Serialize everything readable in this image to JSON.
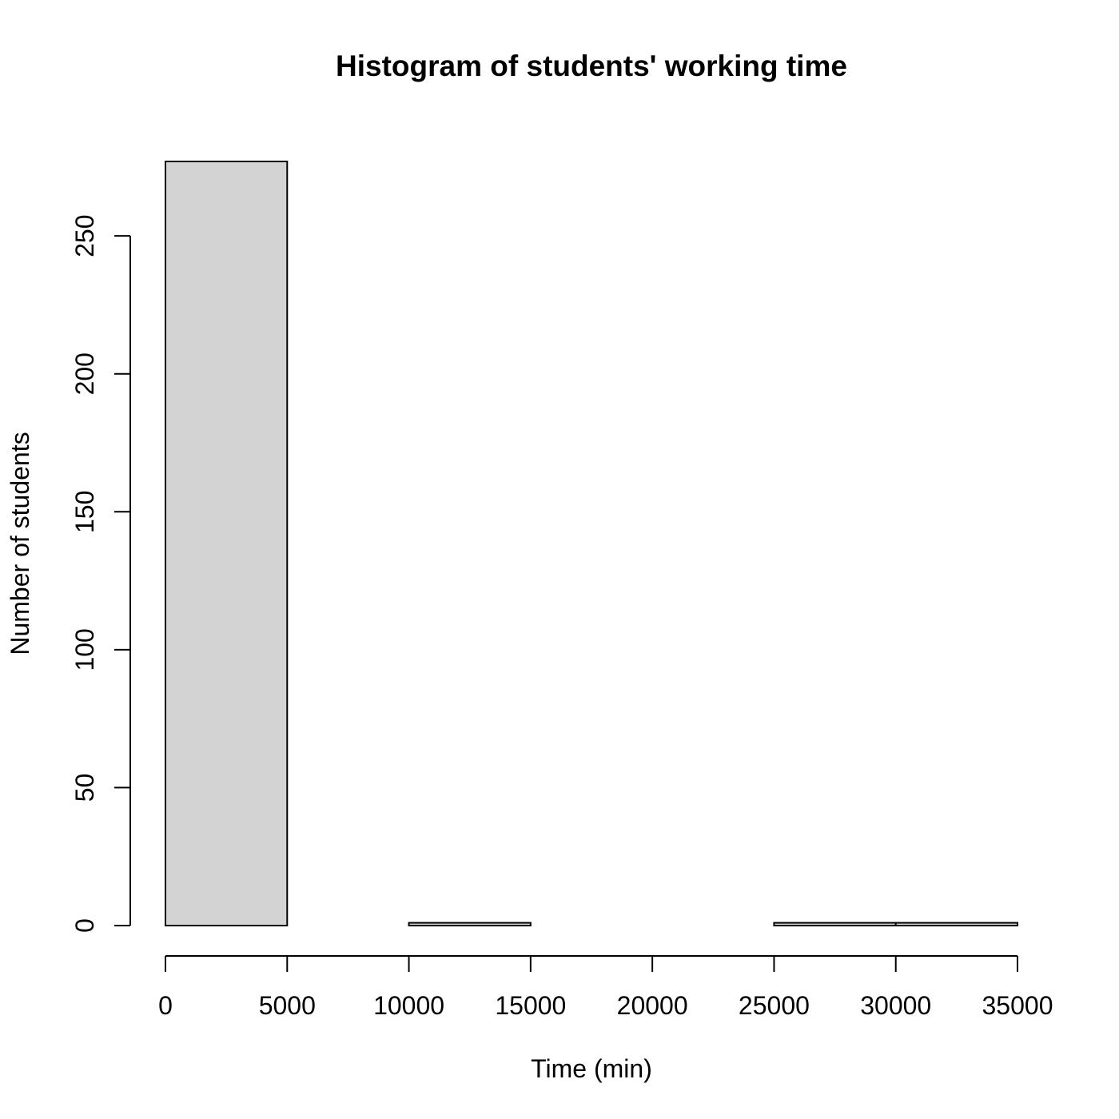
{
  "chart_data": {
    "type": "bar",
    "title": "Histogram of students' working time",
    "xlabel": "Time (min)",
    "ylabel": "Number of students",
    "bins": [
      {
        "start": 0,
        "end": 5000,
        "count": 277
      },
      {
        "start": 5000,
        "end": 10000,
        "count": 0
      },
      {
        "start": 10000,
        "end": 15000,
        "count": 1
      },
      {
        "start": 15000,
        "end": 20000,
        "count": 0
      },
      {
        "start": 20000,
        "end": 25000,
        "count": 0
      },
      {
        "start": 25000,
        "end": 30000,
        "count": 1
      },
      {
        "start": 30000,
        "end": 35000,
        "count": 1
      }
    ],
    "xlim": [
      0,
      35000
    ],
    "ylim": [
      0,
      277
    ],
    "x_ticks": [
      0,
      5000,
      10000,
      15000,
      20000,
      25000,
      30000,
      35000
    ],
    "y_ticks": [
      0,
      50,
      100,
      150,
      200,
      250
    ],
    "bar_fill": "#d3d3d3",
    "bar_stroke": "#000000",
    "grid": false,
    "legend": "none"
  }
}
